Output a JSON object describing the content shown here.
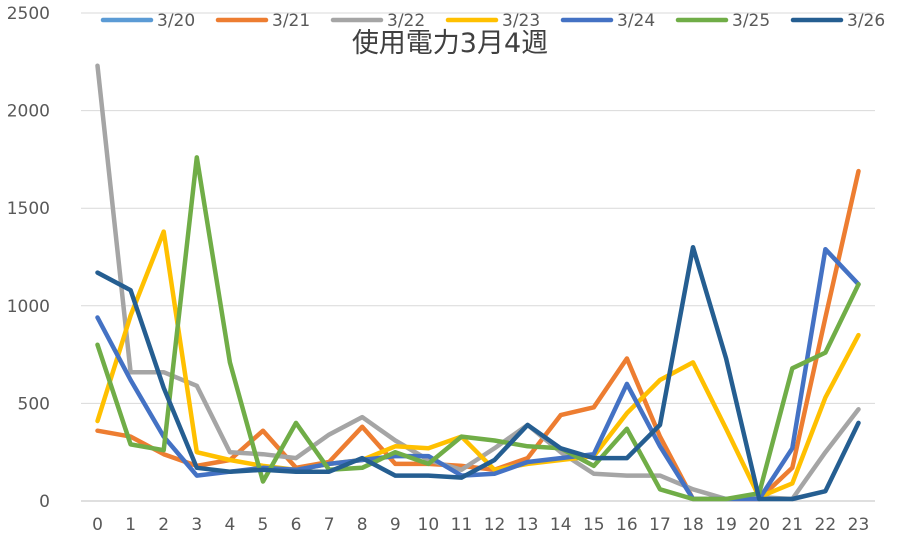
{
  "chart_data": {
    "type": "line",
    "title": "使用電力3月4週",
    "xlabel": "",
    "ylabel": "",
    "categories": [
      "0",
      "1",
      "2",
      "3",
      "4",
      "5",
      "6",
      "7",
      "8",
      "9",
      "10",
      "11",
      "12",
      "13",
      "14",
      "15",
      "16",
      "17",
      "18",
      "19",
      "20",
      "21",
      "22",
      "23"
    ],
    "ylim": [
      0,
      2500
    ],
    "yticks": [
      0,
      500,
      1000,
      1500,
      2000,
      2500
    ],
    "grid": true,
    "legend_position": "top",
    "series": [
      {
        "name": "3/20",
        "color": "#5b9bd5",
        "values": [
          null,
          null,
          null,
          null,
          null,
          null,
          null,
          null,
          null,
          null,
          null,
          null,
          null,
          null,
          null,
          null,
          null,
          null,
          null,
          null,
          null,
          null,
          null,
          null
        ]
      },
      {
        "name": "3/21",
        "color": "#ed7d31",
        "values": [
          360,
          330,
          240,
          180,
          210,
          360,
          170,
          200,
          380,
          190,
          190,
          180,
          160,
          220,
          440,
          480,
          730,
          330,
          10,
          10,
          10,
          170,
          940,
          1690
        ]
      },
      {
        "name": "3/22",
        "color": "#a5a5a5",
        "values": [
          2230,
          660,
          660,
          590,
          250,
          240,
          220,
          340,
          430,
          310,
          210,
          160,
          270,
          390,
          250,
          140,
          130,
          130,
          60,
          10,
          20,
          10,
          250,
          470
        ]
      },
      {
        "name": "3/23",
        "color": "#ffc000",
        "values": [
          410,
          950,
          1380,
          250,
          210,
          180,
          160,
          190,
          210,
          280,
          270,
          330,
          160,
          190,
          210,
          230,
          450,
          620,
          710,
          370,
          20,
          90,
          530,
          850
        ]
      },
      {
        "name": "3/24",
        "color": "#4472c4",
        "values": [
          940,
          620,
          330,
          130,
          150,
          170,
          160,
          190,
          210,
          230,
          230,
          130,
          140,
          200,
          220,
          240,
          600,
          280,
          10,
          10,
          10,
          270,
          1290,
          1110
        ]
      },
      {
        "name": "3/25",
        "color": "#70ad47",
        "values": [
          800,
          290,
          260,
          1760,
          710,
          100,
          400,
          160,
          170,
          250,
          190,
          330,
          310,
          280,
          270,
          180,
          370,
          60,
          10,
          10,
          40,
          680,
          760,
          1110
        ]
      },
      {
        "name": "3/26",
        "color": "#255e91",
        "values": [
          1170,
          1080,
          580,
          170,
          150,
          160,
          150,
          150,
          220,
          130,
          130,
          120,
          210,
          390,
          270,
          220,
          220,
          390,
          1300,
          730,
          10,
          10,
          50,
          400
        ]
      }
    ]
  }
}
